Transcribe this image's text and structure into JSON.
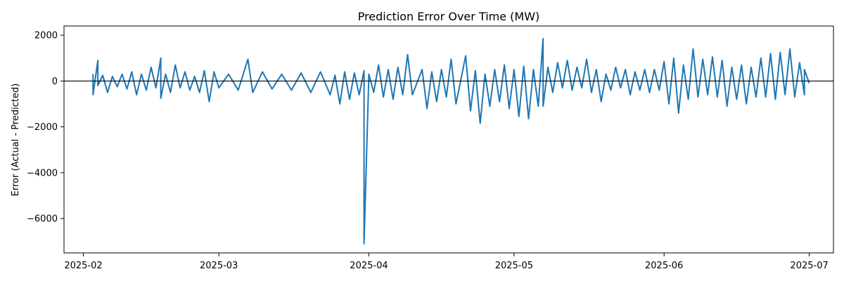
{
  "chart_data": {
    "type": "line",
    "title": "Prediction Error Over Time (MW)",
    "xlabel": "",
    "ylabel": "Error (Actual - Predicted)",
    "x_range": [
      "2025-01-28",
      "2025-07-06"
    ],
    "ylim": [
      -7500,
      2400
    ],
    "xticks": [
      "2025-02",
      "2025-03",
      "2025-04",
      "2025-05",
      "2025-06",
      "2025-07"
    ],
    "xtick_dates": [
      "2025-02-01",
      "2025-03-01",
      "2025-04-01",
      "2025-05-01",
      "2025-06-01",
      "2025-07-01"
    ],
    "yticks": [
      2000,
      0,
      -2000,
      -4000,
      -6000
    ],
    "ytick_labels": [
      "2000",
      "0",
      "−2000",
      "−4000",
      "−6000"
    ],
    "reference_line_y": 0,
    "grid": false,
    "series": [
      {
        "color": "#1f77b4",
        "points": [
          [
            "2025-02-03",
            300
          ],
          [
            "2025-02-03",
            -600
          ],
          [
            "2025-02-04",
            900
          ],
          [
            "2025-02-04",
            -200
          ],
          [
            "2025-02-05",
            250
          ],
          [
            "2025-02-06",
            -500
          ],
          [
            "2025-02-07",
            200
          ],
          [
            "2025-02-08",
            -250
          ],
          [
            "2025-02-09",
            300
          ],
          [
            "2025-02-10",
            -350
          ],
          [
            "2025-02-11",
            400
          ],
          [
            "2025-02-12",
            -600
          ],
          [
            "2025-02-13",
            300
          ],
          [
            "2025-02-14",
            -400
          ],
          [
            "2025-02-15",
            600
          ],
          [
            "2025-02-16",
            -300
          ],
          [
            "2025-02-17",
            1000
          ],
          [
            "2025-02-17",
            -750
          ],
          [
            "2025-02-18",
            300
          ],
          [
            "2025-02-19",
            -500
          ],
          [
            "2025-02-20",
            700
          ],
          [
            "2025-02-21",
            -300
          ],
          [
            "2025-02-22",
            400
          ],
          [
            "2025-02-23",
            -400
          ],
          [
            "2025-02-24",
            200
          ],
          [
            "2025-02-25",
            -500
          ],
          [
            "2025-02-26",
            450
          ],
          [
            "2025-02-27",
            -900
          ],
          [
            "2025-02-28",
            400
          ],
          [
            "2025-03-01",
            -300
          ],
          [
            "2025-03-03",
            300
          ],
          [
            "2025-03-05",
            -400
          ],
          [
            "2025-03-07",
            950
          ],
          [
            "2025-03-08",
            -500
          ],
          [
            "2025-03-10",
            400
          ],
          [
            "2025-03-12",
            -350
          ],
          [
            "2025-03-14",
            300
          ],
          [
            "2025-03-16",
            -400
          ],
          [
            "2025-03-18",
            350
          ],
          [
            "2025-03-20",
            -500
          ],
          [
            "2025-03-22",
            400
          ],
          [
            "2025-03-24",
            -600
          ],
          [
            "2025-03-25",
            250
          ],
          [
            "2025-03-26",
            -1000
          ],
          [
            "2025-03-27",
            400
          ],
          [
            "2025-03-28",
            -800
          ],
          [
            "2025-03-29",
            350
          ],
          [
            "2025-03-30",
            -600
          ],
          [
            "2025-03-31",
            450
          ],
          [
            "2025-03-31",
            -300
          ],
          [
            "2025-03-31",
            -7100
          ],
          [
            "2025-04-01",
            300
          ],
          [
            "2025-04-02",
            -500
          ],
          [
            "2025-04-03",
            700
          ],
          [
            "2025-04-04",
            -700
          ],
          [
            "2025-04-05",
            500
          ],
          [
            "2025-04-06",
            -800
          ],
          [
            "2025-04-07",
            600
          ],
          [
            "2025-04-08",
            -600
          ],
          [
            "2025-04-09",
            1150
          ],
          [
            "2025-04-10",
            -600
          ],
          [
            "2025-04-12",
            500
          ],
          [
            "2025-04-13",
            -1200
          ],
          [
            "2025-04-14",
            400
          ],
          [
            "2025-04-15",
            -900
          ],
          [
            "2025-04-16",
            500
          ],
          [
            "2025-04-17",
            -700
          ],
          [
            "2025-04-18",
            950
          ],
          [
            "2025-04-19",
            -1000
          ],
          [
            "2025-04-21",
            1100
          ],
          [
            "2025-04-22",
            -1300
          ],
          [
            "2025-04-23",
            450
          ],
          [
            "2025-04-24",
            -1850
          ],
          [
            "2025-04-25",
            300
          ],
          [
            "2025-04-26",
            -1100
          ],
          [
            "2025-04-27",
            500
          ],
          [
            "2025-04-28",
            -900
          ],
          [
            "2025-04-29",
            700
          ],
          [
            "2025-04-30",
            -1200
          ],
          [
            "2025-05-01",
            500
          ],
          [
            "2025-05-02",
            -1550
          ],
          [
            "2025-05-03",
            650
          ],
          [
            "2025-05-04",
            -1650
          ],
          [
            "2025-05-05",
            500
          ],
          [
            "2025-05-06",
            -1100
          ],
          [
            "2025-05-07",
            1850
          ],
          [
            "2025-05-07",
            -1100
          ],
          [
            "2025-05-08",
            600
          ],
          [
            "2025-05-09",
            -500
          ],
          [
            "2025-05-10",
            800
          ],
          [
            "2025-05-11",
            -300
          ],
          [
            "2025-05-12",
            900
          ],
          [
            "2025-05-13",
            -400
          ],
          [
            "2025-05-14",
            600
          ],
          [
            "2025-05-15",
            -300
          ],
          [
            "2025-05-16",
            950
          ],
          [
            "2025-05-17",
            -500
          ],
          [
            "2025-05-18",
            500
          ],
          [
            "2025-05-19",
            -900
          ],
          [
            "2025-05-20",
            300
          ],
          [
            "2025-05-21",
            -400
          ],
          [
            "2025-05-22",
            600
          ],
          [
            "2025-05-23",
            -300
          ],
          [
            "2025-05-24",
            500
          ],
          [
            "2025-05-25",
            -600
          ],
          [
            "2025-05-26",
            400
          ],
          [
            "2025-05-27",
            -400
          ],
          [
            "2025-05-28",
            500
          ],
          [
            "2025-05-29",
            -500
          ],
          [
            "2025-05-30",
            500
          ],
          [
            "2025-05-31",
            -400
          ],
          [
            "2025-06-01",
            850
          ],
          [
            "2025-06-02",
            -1000
          ],
          [
            "2025-06-03",
            1000
          ],
          [
            "2025-06-04",
            -1400
          ],
          [
            "2025-06-05",
            700
          ],
          [
            "2025-06-06",
            -800
          ],
          [
            "2025-06-07",
            1400
          ],
          [
            "2025-06-08",
            -700
          ],
          [
            "2025-06-09",
            950
          ],
          [
            "2025-06-10",
            -600
          ],
          [
            "2025-06-11",
            1050
          ],
          [
            "2025-06-12",
            -700
          ],
          [
            "2025-06-13",
            900
          ],
          [
            "2025-06-14",
            -1100
          ],
          [
            "2025-06-15",
            600
          ],
          [
            "2025-06-16",
            -800
          ],
          [
            "2025-06-17",
            700
          ],
          [
            "2025-06-18",
            -1000
          ],
          [
            "2025-06-19",
            600
          ],
          [
            "2025-06-20",
            -700
          ],
          [
            "2025-06-21",
            1000
          ],
          [
            "2025-06-22",
            -700
          ],
          [
            "2025-06-23",
            1200
          ],
          [
            "2025-06-24",
            -800
          ],
          [
            "2025-06-25",
            1250
          ],
          [
            "2025-06-26",
            -600
          ],
          [
            "2025-06-27",
            1400
          ],
          [
            "2025-06-28",
            -700
          ],
          [
            "2025-06-29",
            800
          ],
          [
            "2025-06-30",
            -600
          ],
          [
            "2025-06-30",
            500
          ],
          [
            "2025-07-01",
            -100
          ]
        ]
      }
    ]
  }
}
